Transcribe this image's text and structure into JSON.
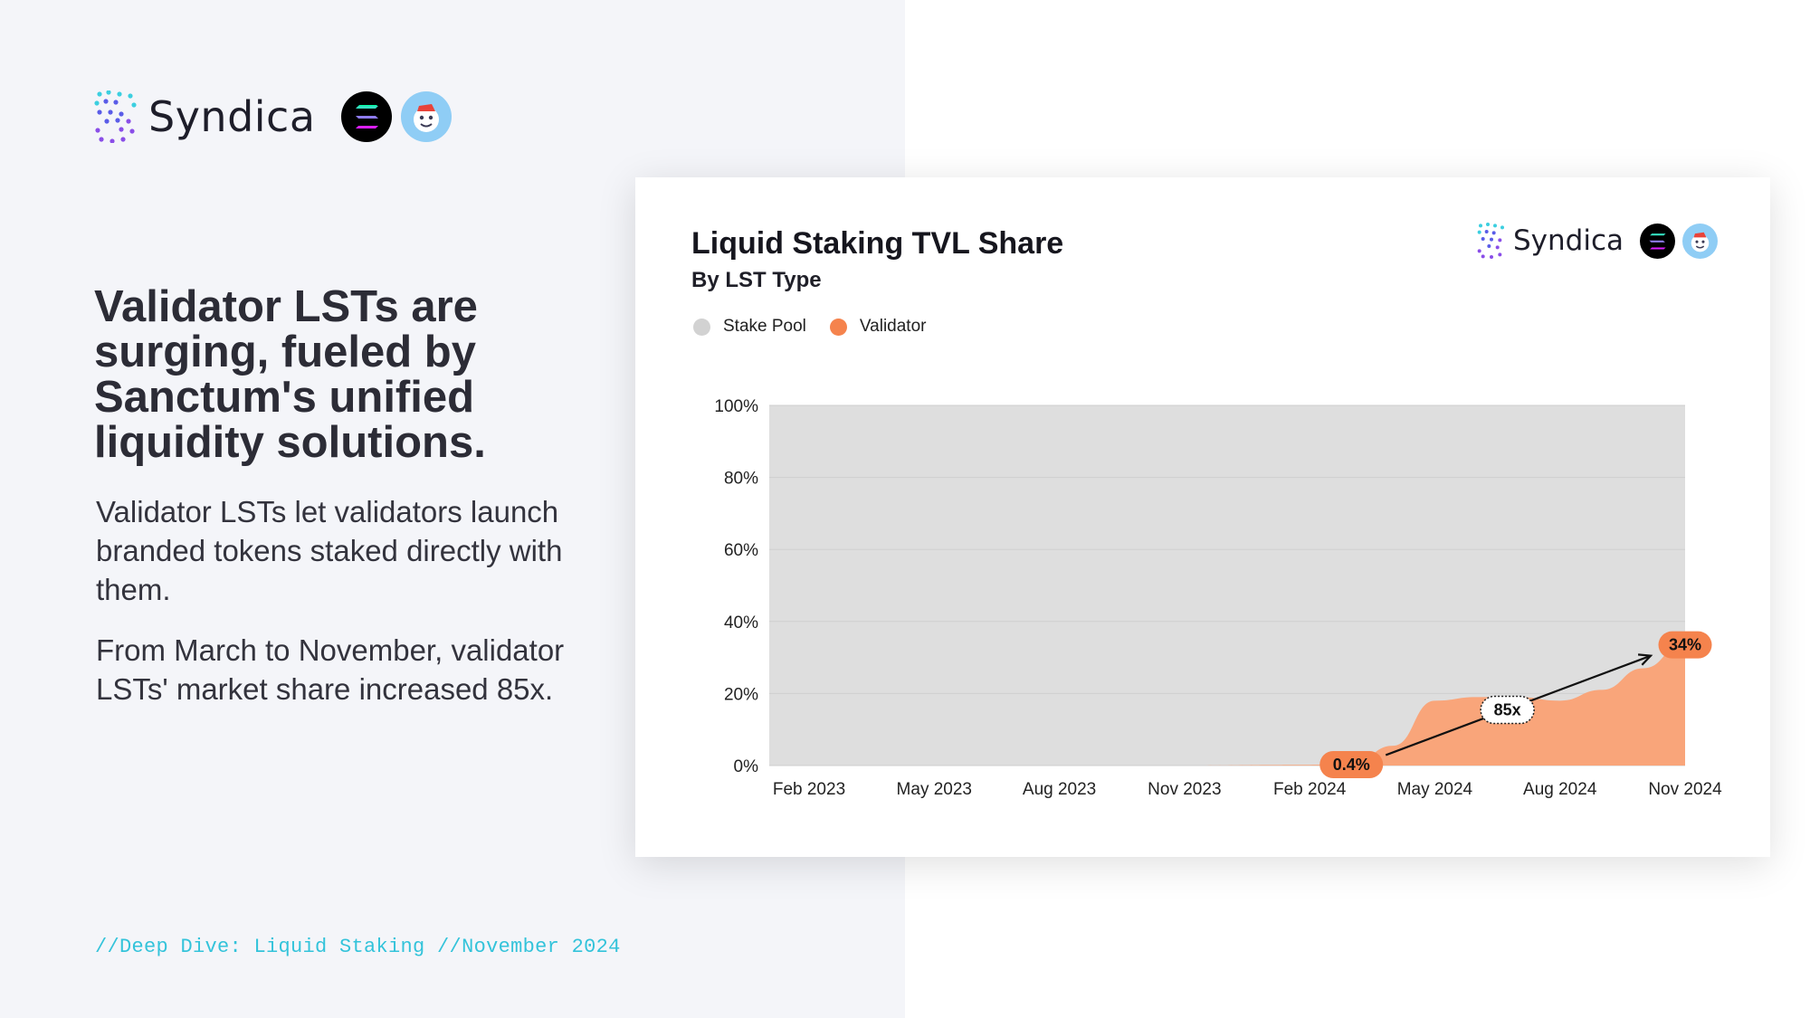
{
  "brand": {
    "name": "Syndica"
  },
  "headline": "Validator LSTs are surging, fueled by Sanctum's unified liquidity solutions.",
  "paragraphs": [
    "Validator LSTs let validators launch branded tokens staked directly with them.",
    "From March to November, validator LSTs' market share increased 85x."
  ],
  "footer": "//Deep Dive: Liquid Staking //November 2024",
  "icons": [
    "syndica-logo-icon",
    "solana-icon",
    "sanctum-icon"
  ],
  "colors": {
    "stake_pool": "#dedede",
    "validator": "#f9a57a",
    "badge": "#f5834d",
    "footer_text": "#33c3da",
    "left_bg": "#f4f5f9"
  },
  "chart_data": {
    "type": "area",
    "stacked": true,
    "title": "Liquid Staking TVL Share",
    "subtitle": "By LST Type",
    "x_tick_labels": [
      "Feb 2023",
      "May 2023",
      "Aug 2023",
      "Nov 2023",
      "Feb 2024",
      "May 2024",
      "Aug 2024",
      "Nov 2024"
    ],
    "y_tick_labels": [
      "0%",
      "20%",
      "40%",
      "60%",
      "80%",
      "100%"
    ],
    "ylim": [
      0,
      100
    ],
    "grid": true,
    "legend_position": "top-left",
    "x": [
      "2023-02",
      "2023-05",
      "2023-08",
      "2023-11",
      "2024-02",
      "2024-03",
      "2024-04",
      "2024-05",
      "2024-06",
      "2024-07",
      "2024-08",
      "2024-09",
      "2024-10",
      "2024-11"
    ],
    "series": [
      {
        "name": "Stake Pool",
        "color": "#dedede",
        "values": [
          100,
          100,
          100,
          100,
          99.8,
          99.6,
          94.5,
          82,
          81,
          81,
          82,
          79,
          73,
          66
        ]
      },
      {
        "name": "Validator",
        "color": "#f9a57a",
        "values": [
          0,
          0,
          0,
          0,
          0.2,
          0.4,
          5.5,
          18,
          19,
          19,
          18,
          21,
          27,
          34
        ]
      }
    ],
    "annotations": [
      {
        "label": "0.4%",
        "x": "2024-03",
        "y": 0.4,
        "style": "filled"
      },
      {
        "label": "34%",
        "x": "2024-11",
        "y": 34,
        "style": "filled"
      },
      {
        "label": "85x",
        "x": "2024-07",
        "y": 17.5,
        "style": "outline"
      }
    ]
  }
}
